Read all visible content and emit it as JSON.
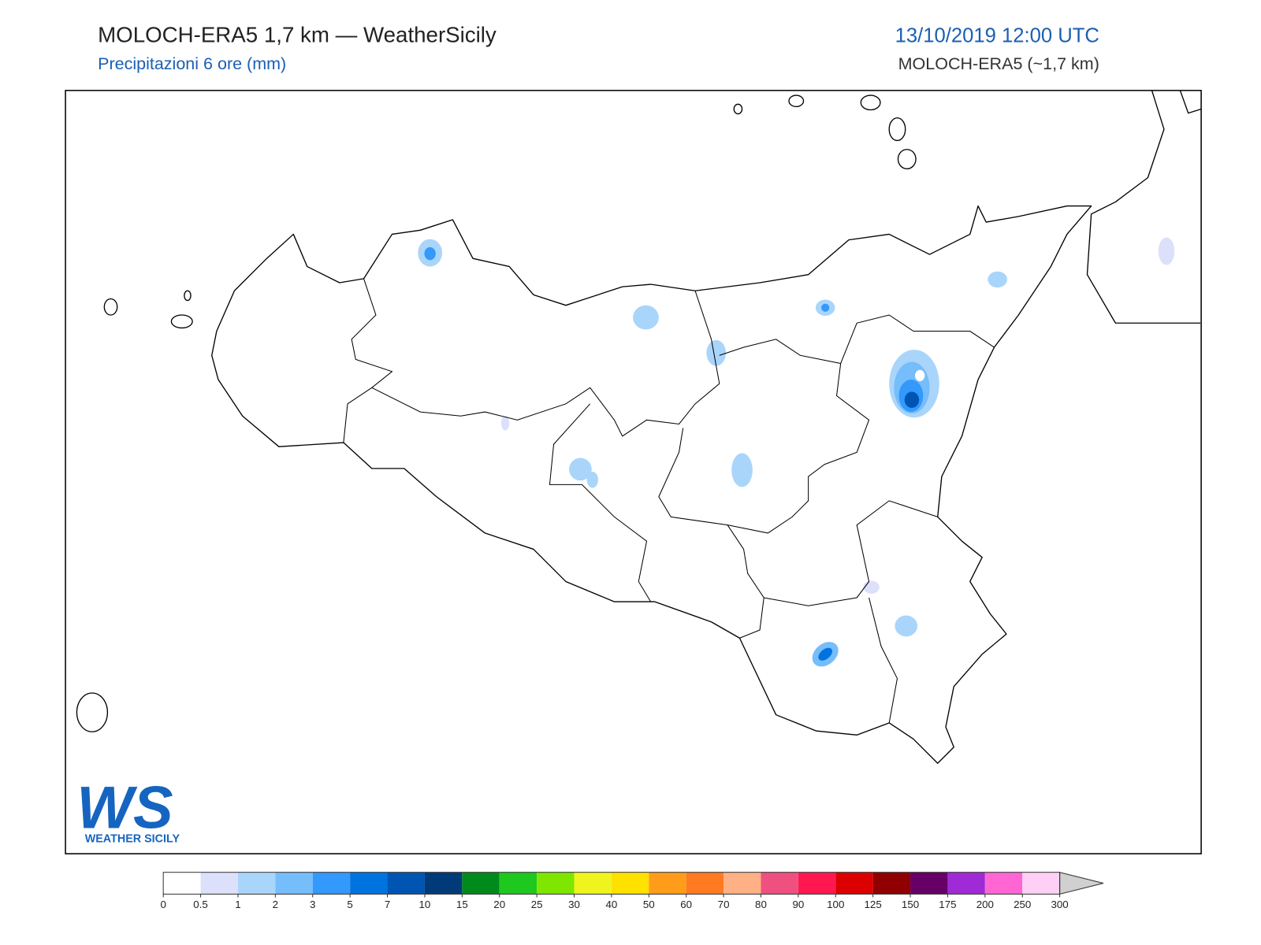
{
  "header": {
    "title": "MOLOCH-ERA5 1,7 km — WeatherSicily",
    "subtitle": "Precipitazioni 6 ore (mm)",
    "date": "13/10/2019 12:00 UTC",
    "model": "MOLOCH-ERA5 (~1,7 km)"
  },
  "logo": {
    "mark": "WS",
    "text": "WEATHER SICILY"
  },
  "colorbar": {
    "ticks": [
      0,
      0.5,
      1,
      2,
      3,
      5,
      7,
      10,
      15,
      20,
      25,
      30,
      40,
      50,
      60,
      70,
      80,
      90,
      100,
      125,
      150,
      175,
      200,
      250,
      300
    ],
    "colors": [
      "#ffffff",
      "#dde0fb",
      "#aad5fb",
      "#75bdfb",
      "#3399fb",
      "#0073df",
      "#0055b3",
      "#003a78",
      "#008a1c",
      "#1ec81e",
      "#7ee600",
      "#f0f41e",
      "#ffe100",
      "#ff9c1a",
      "#ff7a21",
      "#ffb085",
      "#ee5080",
      "#ff1850",
      "#dd0000",
      "#900000",
      "#660066",
      "#a02ad6",
      "#ff66d4",
      "#ffd0f5"
    ],
    "extend_color": "#d0d0d0"
  }
}
